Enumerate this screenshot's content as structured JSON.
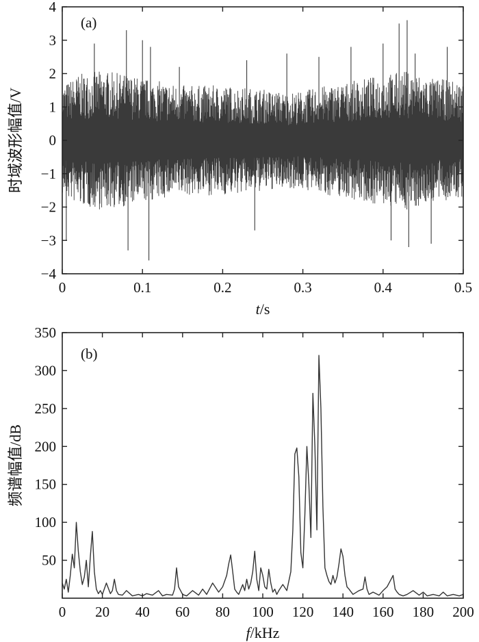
{
  "chart_data": [
    {
      "type": "line",
      "panel_label": "(a)",
      "xlabel_italic": "t",
      "xlabel_unit": "/s",
      "ylabel": "时域波形幅值/V",
      "xlim": [
        0,
        0.5
      ],
      "ylim": [
        -4,
        4
      ],
      "xticks": [
        "0",
        "0.1",
        "0.2",
        "0.3",
        "0.4",
        "0.5"
      ],
      "yticks": [
        "4",
        "3",
        "2",
        "1",
        "0",
        "−1",
        "−2",
        "−3",
        "−4"
      ],
      "line_color": "#3a3a3a",
      "envelope": {
        "t": [
          0,
          0.02,
          0.05,
          0.08,
          0.1,
          0.15,
          0.2,
          0.25,
          0.28,
          0.3,
          0.33,
          0.36,
          0.4,
          0.43,
          0.46,
          0.5
        ],
        "amplitude": [
          1.5,
          1.8,
          1.9,
          1.8,
          1.7,
          1.5,
          1.5,
          1.4,
          1.3,
          1.35,
          1.5,
          1.6,
          1.8,
          1.9,
          1.7,
          1.6
        ]
      },
      "peaks": [
        {
          "t": 0.005,
          "v": -3.0
        },
        {
          "t": 0.04,
          "v": 2.9
        },
        {
          "t": 0.08,
          "v": 3.3
        },
        {
          "t": 0.082,
          "v": -3.3
        },
        {
          "t": 0.1,
          "v": 3.0
        },
        {
          "t": 0.108,
          "v": -3.6
        },
        {
          "t": 0.11,
          "v": 2.8
        },
        {
          "t": 0.146,
          "v": 2.2
        },
        {
          "t": 0.23,
          "v": 2.4
        },
        {
          "t": 0.24,
          "v": -2.7
        },
        {
          "t": 0.28,
          "v": 2.6
        },
        {
          "t": 0.32,
          "v": 2.5
        },
        {
          "t": 0.36,
          "v": 2.8
        },
        {
          "t": 0.4,
          "v": 2.9
        },
        {
          "t": 0.41,
          "v": -3.0
        },
        {
          "t": 0.42,
          "v": 3.5
        },
        {
          "t": 0.43,
          "v": 3.6
        },
        {
          "t": 0.432,
          "v": -3.2
        },
        {
          "t": 0.44,
          "v": 2.6
        },
        {
          "t": 0.46,
          "v": -3.1
        },
        {
          "t": 0.48,
          "v": 2.8
        }
      ]
    },
    {
      "type": "line",
      "panel_label": "(b)",
      "xlabel_italic": "f",
      "xlabel_unit": "/kHz",
      "ylabel": "频谱幅值/dB",
      "xlim": [
        0,
        200
      ],
      "ylim": [
        0,
        350
      ],
      "xticks": [
        "0",
        "20",
        "40",
        "60",
        "80",
        "100",
        "120",
        "140",
        "160",
        "180",
        "200"
      ],
      "yticks": [
        "350",
        "300",
        "250",
        "200",
        "150",
        "100",
        "50"
      ],
      "line_color": "#333333",
      "x": [
        0,
        1,
        2,
        3,
        4,
        5,
        6,
        7,
        8,
        9,
        10,
        11,
        12,
        13,
        14,
        15,
        16,
        17,
        18,
        19,
        20,
        22,
        24,
        25,
        26,
        27,
        28,
        30,
        32,
        35,
        38,
        40,
        42,
        45,
        48,
        50,
        52,
        55,
        56,
        57,
        58,
        59,
        60,
        62,
        65,
        68,
        70,
        72,
        75,
        78,
        80,
        82,
        83,
        84,
        85,
        86,
        87,
        88,
        90,
        91,
        92,
        93,
        94,
        95,
        96,
        97,
        98,
        99,
        100,
        101,
        102,
        103,
        104,
        105,
        106,
        107,
        108,
        110,
        112,
        114,
        115,
        116,
        117,
        118,
        119,
        120,
        121,
        122,
        123,
        124,
        125,
        126,
        127,
        128,
        129,
        130,
        131,
        132,
        133,
        134,
        135,
        136,
        137,
        138,
        139,
        140,
        141,
        142,
        143,
        145,
        148,
        150,
        151,
        152,
        153,
        155,
        158,
        160,
        162,
        164,
        165,
        166,
        167,
        168,
        170,
        172,
        175,
        178,
        180,
        182,
        185,
        188,
        190,
        192,
        195,
        198,
        200
      ],
      "y": [
        20,
        12,
        25,
        8,
        30,
        58,
        40,
        100,
        62,
        35,
        18,
        28,
        50,
        15,
        55,
        88,
        35,
        12,
        6,
        10,
        5,
        20,
        6,
        10,
        25,
        10,
        5,
        4,
        10,
        3,
        5,
        3,
        6,
        4,
        10,
        3,
        5,
        4,
        12,
        40,
        15,
        10,
        5,
        3,
        10,
        4,
        12,
        5,
        20,
        8,
        15,
        30,
        45,
        57,
        35,
        12,
        8,
        5,
        18,
        10,
        25,
        12,
        20,
        35,
        62,
        25,
        10,
        40,
        30,
        15,
        12,
        38,
        20,
        8,
        12,
        5,
        10,
        18,
        10,
        35,
        90,
        190,
        198,
        160,
        60,
        40,
        110,
        200,
        150,
        80,
        270,
        200,
        90,
        320,
        250,
        120,
        40,
        30,
        22,
        18,
        30,
        20,
        28,
        45,
        65,
        55,
        30,
        15,
        12,
        5,
        10,
        12,
        28,
        12,
        5,
        8,
        4,
        10,
        15,
        25,
        30,
        12,
        8,
        5,
        3,
        5,
        10,
        4,
        8,
        3,
        5,
        3,
        8,
        3,
        5,
        3,
        5
      ]
    }
  ]
}
